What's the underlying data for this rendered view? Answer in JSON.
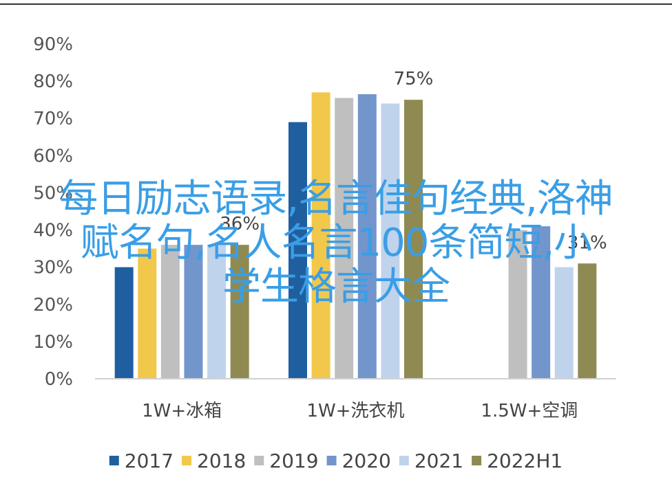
{
  "chart_data": {
    "type": "bar",
    "categories": [
      "1W+冰箱",
      "1W+洗衣机",
      "1.5W+空调"
    ],
    "yticks": [
      "0%",
      "10%",
      "20%",
      "30%",
      "40%",
      "50%",
      "60%",
      "70%",
      "80%",
      "90%"
    ],
    "ylim": [
      0,
      90
    ],
    "grid": false,
    "legend_position": "bottom",
    "series": [
      {
        "name": "2017",
        "color": "#1f5fa0",
        "values": [
          30,
          69,
          null
        ]
      },
      {
        "name": "2018",
        "color": "#f2c84b",
        "values": [
          35,
          77,
          null
        ]
      },
      {
        "name": "2019",
        "color": "#bfbfbf",
        "values": [
          36,
          75.5,
          40
        ]
      },
      {
        "name": "2020",
        "color": "#7295cc",
        "values": [
          36,
          76.5,
          41
        ]
      },
      {
        "name": "2021",
        "color": "#bfd3ec",
        "values": [
          36,
          74,
          30
        ]
      },
      {
        "name": "2022H1",
        "color": "#8f8a52",
        "values": [
          36,
          75,
          31
        ]
      }
    ],
    "data_labels": [
      {
        "series": 5,
        "category": 0,
        "text": "36%"
      },
      {
        "series": 5,
        "category": 1,
        "text": "75%"
      },
      {
        "series": 5,
        "category": 2,
        "text": "31%"
      }
    ]
  },
  "overlay": {
    "line1": "每日励志语录,名言佳句经典,洛神",
    "line2": "赋名句,名人名言100条简短,小",
    "line3": "学生格言大全"
  }
}
